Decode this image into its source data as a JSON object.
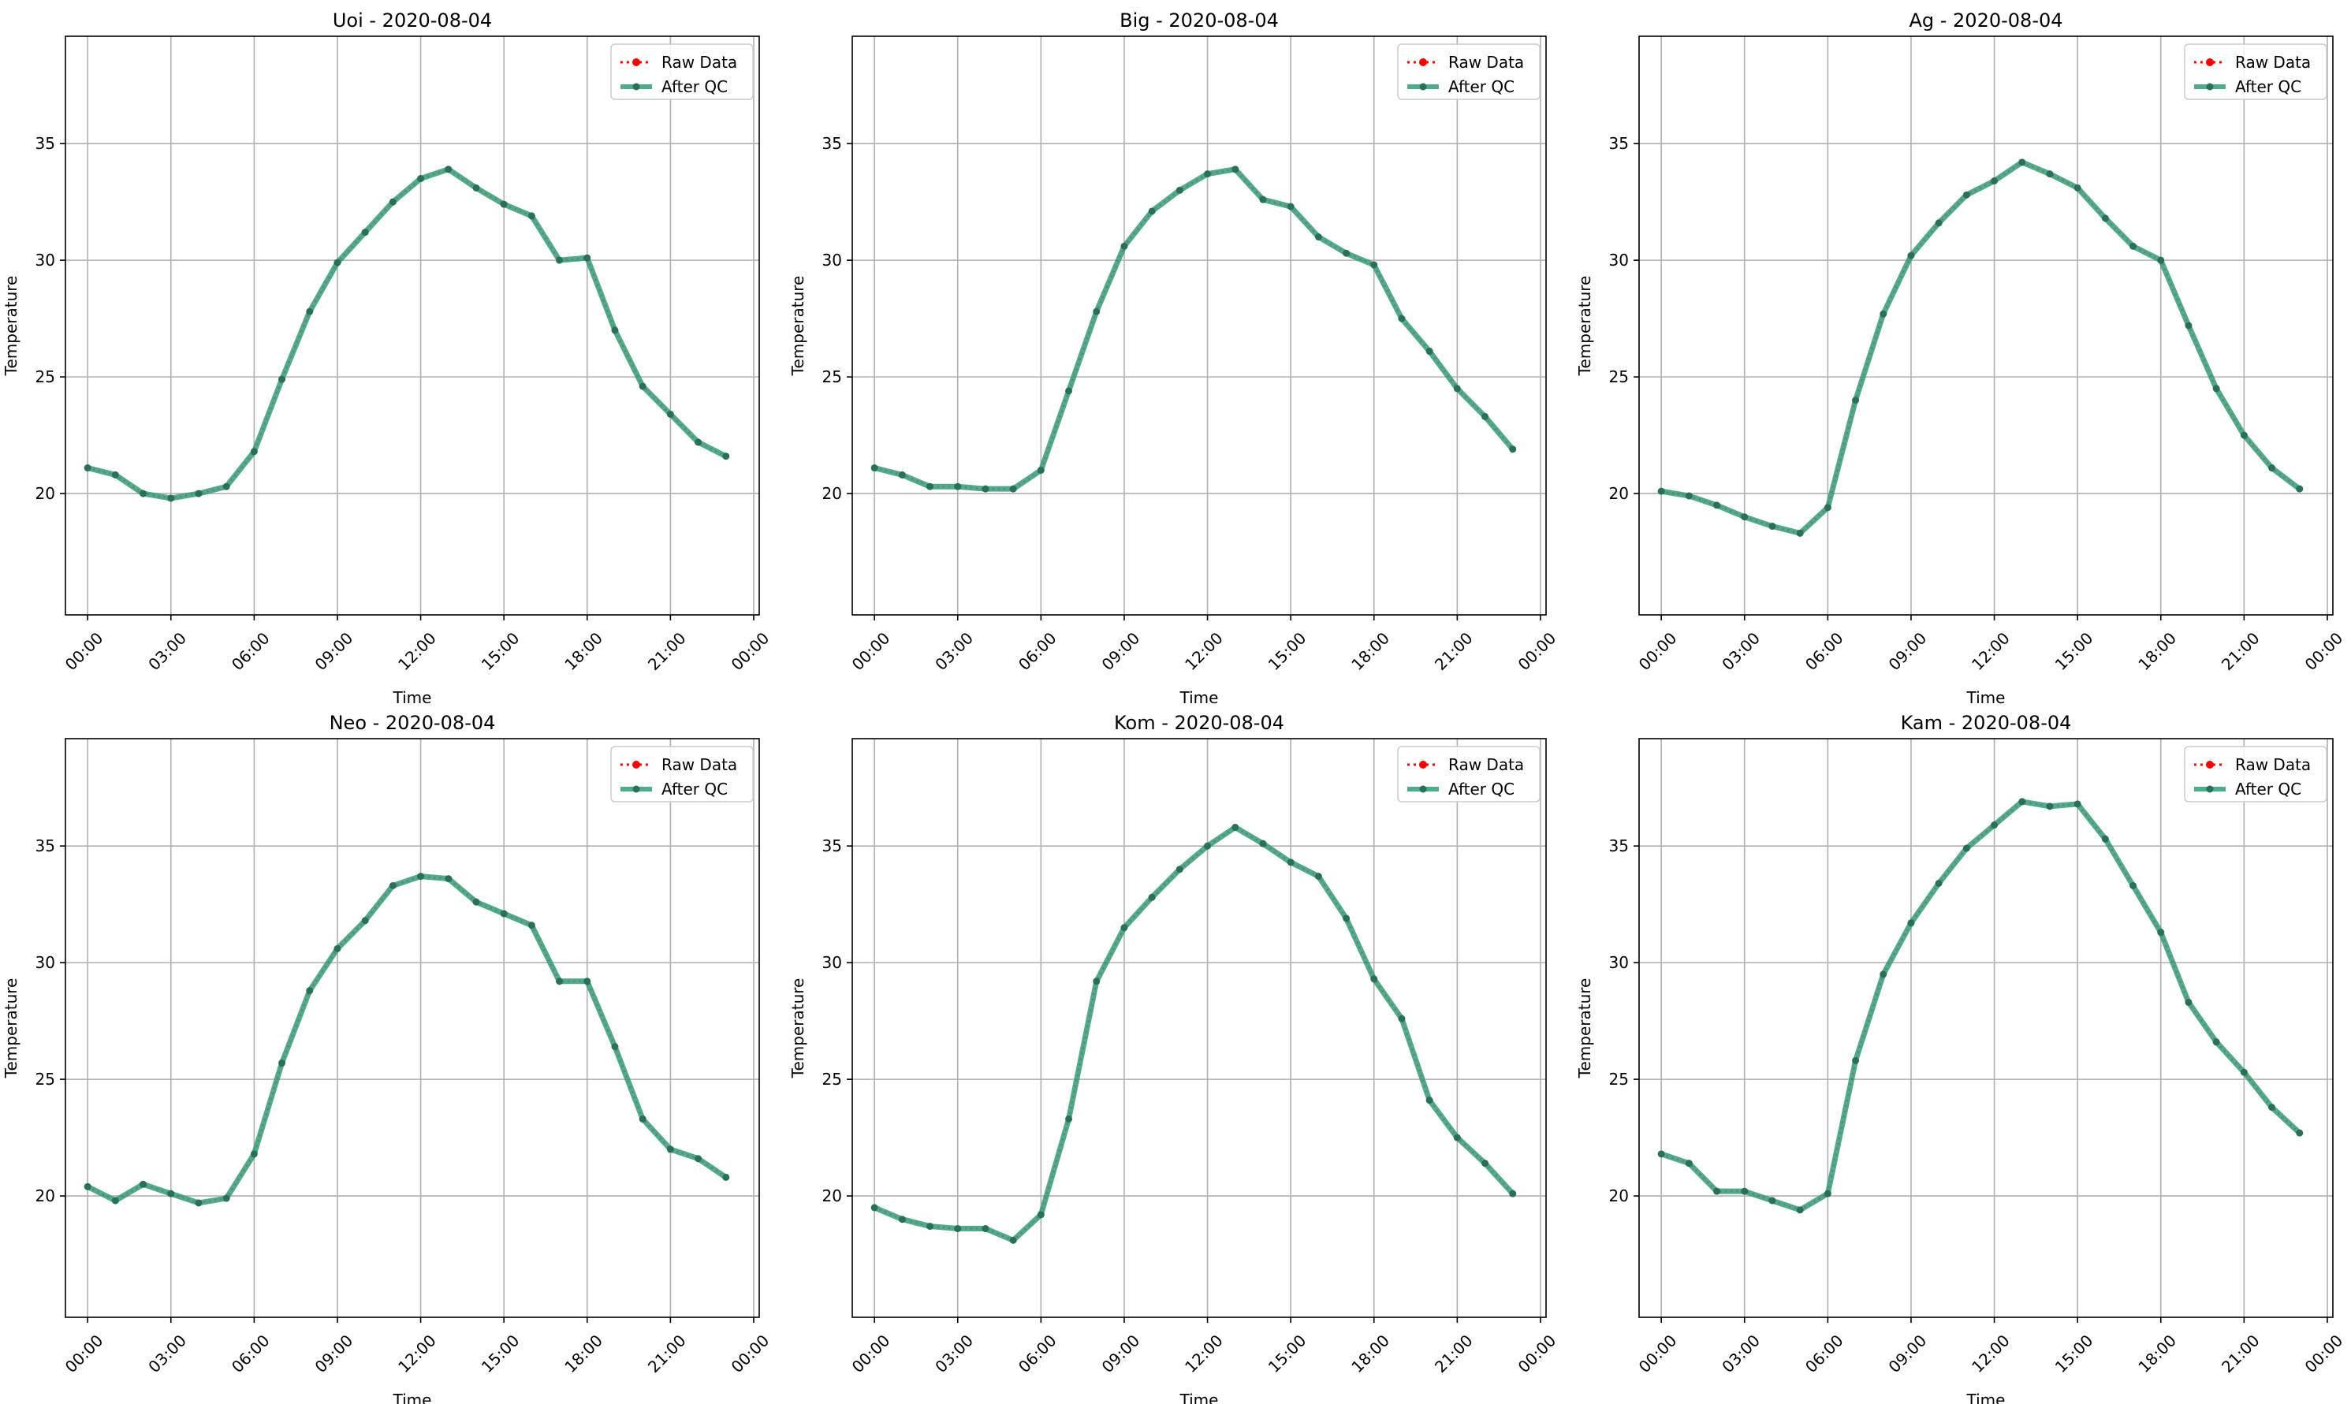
{
  "legend_labels": {
    "raw": "Raw Data",
    "qc": "After QC"
  },
  "colors": {
    "raw": "#ff0000",
    "qc": "#2e9e78",
    "grid": "#b0b0b0",
    "axis": "#000000",
    "marker": "#2a7058"
  },
  "chart_data": [
    {
      "type": "line",
      "title": "Uoi - 2020-08-04",
      "xlabel": "Time",
      "ylabel": "Temperature",
      "ylim": [
        14.8,
        39.6
      ],
      "yticks": [
        20,
        25,
        30,
        35
      ],
      "xlim": [
        -0.8,
        24.2
      ],
      "xticks": [
        0,
        3,
        6,
        9,
        12,
        15,
        18,
        21,
        24
      ],
      "xtick_labels": [
        "00:00",
        "03:00",
        "06:00",
        "09:00",
        "12:00",
        "15:00",
        "18:00",
        "21:00",
        "00:00"
      ],
      "grid": true,
      "legend": "top-right",
      "series": [
        {
          "name": "Raw Data",
          "x": [
            0,
            1,
            2,
            3,
            4,
            5,
            6,
            7,
            8,
            9,
            10,
            11,
            12,
            13,
            14,
            15,
            16,
            17,
            18,
            19,
            20,
            21,
            22,
            23
          ],
          "values": [
            21.1,
            20.8,
            20.0,
            19.8,
            20.0,
            20.3,
            21.8,
            24.9,
            27.8,
            29.9,
            31.2,
            32.5,
            33.5,
            33.9,
            33.1,
            32.4,
            31.9,
            30.0,
            30.1,
            27.0,
            24.6,
            23.4,
            22.2,
            21.6
          ]
        },
        {
          "name": "After QC",
          "x": [
            0,
            1,
            2,
            3,
            4,
            5,
            6,
            7,
            8,
            9,
            10,
            11,
            12,
            13,
            14,
            15,
            16,
            17,
            18,
            19,
            20,
            21,
            22,
            23
          ],
          "values": [
            21.1,
            20.8,
            20.0,
            19.8,
            20.0,
            20.3,
            21.8,
            24.9,
            27.8,
            29.9,
            31.2,
            32.5,
            33.5,
            33.9,
            33.1,
            32.4,
            31.9,
            30.0,
            30.1,
            27.0,
            24.6,
            23.4,
            22.2,
            21.6
          ]
        }
      ]
    },
    {
      "type": "line",
      "title": "Big - 2020-08-04",
      "xlabel": "Time",
      "ylabel": "Temperature",
      "ylim": [
        14.8,
        39.6
      ],
      "yticks": [
        20,
        25,
        30,
        35
      ],
      "xlim": [
        -0.8,
        24.2
      ],
      "xticks": [
        0,
        3,
        6,
        9,
        12,
        15,
        18,
        21,
        24
      ],
      "xtick_labels": [
        "00:00",
        "03:00",
        "06:00",
        "09:00",
        "12:00",
        "15:00",
        "18:00",
        "21:00",
        "00:00"
      ],
      "grid": true,
      "legend": "top-right",
      "series": [
        {
          "name": "Raw Data",
          "x": [
            0,
            1,
            2,
            3,
            4,
            5,
            6,
            7,
            8,
            9,
            10,
            11,
            12,
            13,
            14,
            15,
            16,
            17,
            18,
            19,
            20,
            21,
            22,
            23
          ],
          "values": [
            21.1,
            20.8,
            20.3,
            20.3,
            20.2,
            20.2,
            21.0,
            24.4,
            27.8,
            30.6,
            32.1,
            33.0,
            33.7,
            33.9,
            32.6,
            32.3,
            31.0,
            30.3,
            29.8,
            27.5,
            26.1,
            24.5,
            23.3,
            21.9
          ]
        },
        {
          "name": "After QC",
          "x": [
            0,
            1,
            2,
            3,
            4,
            5,
            6,
            7,
            8,
            9,
            10,
            11,
            12,
            13,
            14,
            15,
            16,
            17,
            18,
            19,
            20,
            21,
            22,
            23
          ],
          "values": [
            21.1,
            20.8,
            20.3,
            20.3,
            20.2,
            20.2,
            21.0,
            24.4,
            27.8,
            30.6,
            32.1,
            33.0,
            33.7,
            33.9,
            32.6,
            32.3,
            31.0,
            30.3,
            29.8,
            27.5,
            26.1,
            24.5,
            23.3,
            21.9
          ]
        }
      ]
    },
    {
      "type": "line",
      "title": "Ag - 2020-08-04",
      "xlabel": "Time",
      "ylabel": "Temperature",
      "ylim": [
        14.8,
        39.6
      ],
      "yticks": [
        20,
        25,
        30,
        35
      ],
      "xlim": [
        -0.8,
        24.2
      ],
      "xticks": [
        0,
        3,
        6,
        9,
        12,
        15,
        18,
        21,
        24
      ],
      "xtick_labels": [
        "00:00",
        "03:00",
        "06:00",
        "09:00",
        "12:00",
        "15:00",
        "18:00",
        "21:00",
        "00:00"
      ],
      "grid": true,
      "legend": "top-right",
      "series": [
        {
          "name": "Raw Data",
          "x": [
            0,
            1,
            2,
            3,
            4,
            5,
            6,
            7,
            8,
            9,
            10,
            11,
            12,
            13,
            14,
            15,
            16,
            17,
            18,
            19,
            20,
            21,
            22,
            23
          ],
          "values": [
            20.1,
            19.9,
            19.5,
            19.0,
            18.6,
            18.3,
            19.4,
            24.0,
            27.7,
            30.2,
            31.6,
            32.8,
            33.4,
            34.2,
            33.7,
            33.1,
            31.8,
            30.6,
            30.0,
            27.2,
            24.5,
            22.5,
            21.1,
            20.2
          ]
        },
        {
          "name": "After QC",
          "x": [
            0,
            1,
            2,
            3,
            4,
            5,
            6,
            7,
            8,
            9,
            10,
            11,
            12,
            13,
            14,
            15,
            16,
            17,
            18,
            19,
            20,
            21,
            22,
            23
          ],
          "values": [
            20.1,
            19.9,
            19.5,
            19.0,
            18.6,
            18.3,
            19.4,
            24.0,
            27.7,
            30.2,
            31.6,
            32.8,
            33.4,
            34.2,
            33.7,
            33.1,
            31.8,
            30.6,
            30.0,
            27.2,
            24.5,
            22.5,
            21.1,
            20.2
          ]
        }
      ]
    },
    {
      "type": "line",
      "title": "Neo - 2020-08-04",
      "xlabel": "Time",
      "ylabel": "Temperature",
      "ylim": [
        14.8,
        39.6
      ],
      "yticks": [
        20,
        25,
        30,
        35
      ],
      "xlim": [
        -0.8,
        24.2
      ],
      "xticks": [
        0,
        3,
        6,
        9,
        12,
        15,
        18,
        21,
        24
      ],
      "xtick_labels": [
        "00:00",
        "03:00",
        "06:00",
        "09:00",
        "12:00",
        "15:00",
        "18:00",
        "21:00",
        "00:00"
      ],
      "grid": true,
      "legend": "top-right",
      "series": [
        {
          "name": "Raw Data",
          "x": [
            0,
            1,
            2,
            3,
            4,
            5,
            6,
            7,
            8,
            9,
            10,
            11,
            12,
            13,
            14,
            15,
            16,
            17,
            18,
            19,
            20,
            21,
            22,
            23
          ],
          "values": [
            20.4,
            19.8,
            20.5,
            20.1,
            19.7,
            19.9,
            21.8,
            25.7,
            28.8,
            30.6,
            31.8,
            33.3,
            33.7,
            33.6,
            32.6,
            32.1,
            31.6,
            29.2,
            29.2,
            26.4,
            23.3,
            22.0,
            21.6,
            20.8
          ]
        },
        {
          "name": "After QC",
          "x": [
            0,
            1,
            2,
            3,
            4,
            5,
            6,
            7,
            8,
            9,
            10,
            11,
            12,
            13,
            14,
            15,
            16,
            17,
            18,
            19,
            20,
            21,
            22,
            23
          ],
          "values": [
            20.4,
            19.8,
            20.5,
            20.1,
            19.7,
            19.9,
            21.8,
            25.7,
            28.8,
            30.6,
            31.8,
            33.3,
            33.7,
            33.6,
            32.6,
            32.1,
            31.6,
            29.2,
            29.2,
            26.4,
            23.3,
            22.0,
            21.6,
            20.8
          ]
        }
      ]
    },
    {
      "type": "line",
      "title": "Kom - 2020-08-04",
      "xlabel": "Time",
      "ylabel": "Temperature",
      "ylim": [
        14.8,
        39.6
      ],
      "yticks": [
        20,
        25,
        30,
        35
      ],
      "xlim": [
        -0.8,
        24.2
      ],
      "xticks": [
        0,
        3,
        6,
        9,
        12,
        15,
        18,
        21,
        24
      ],
      "xtick_labels": [
        "00:00",
        "03:00",
        "06:00",
        "09:00",
        "12:00",
        "15:00",
        "18:00",
        "21:00",
        "00:00"
      ],
      "grid": true,
      "legend": "top-right",
      "series": [
        {
          "name": "Raw Data",
          "x": [
            0,
            1,
            2,
            3,
            4,
            5,
            6,
            7,
            8,
            9,
            10,
            11,
            12,
            13,
            14,
            15,
            16,
            17,
            18,
            19,
            20,
            21,
            22,
            23
          ],
          "values": [
            19.5,
            19.0,
            18.7,
            18.6,
            18.6,
            18.1,
            19.2,
            23.3,
            29.2,
            31.5,
            32.8,
            34.0,
            35.0,
            35.8,
            35.1,
            34.3,
            33.7,
            31.9,
            29.3,
            27.6,
            24.1,
            22.5,
            21.4,
            20.1
          ]
        },
        {
          "name": "After QC",
          "x": [
            0,
            1,
            2,
            3,
            4,
            5,
            6,
            7,
            8,
            9,
            10,
            11,
            12,
            13,
            14,
            15,
            16,
            17,
            18,
            19,
            20,
            21,
            22,
            23
          ],
          "values": [
            19.5,
            19.0,
            18.7,
            18.6,
            18.6,
            18.1,
            19.2,
            23.3,
            29.2,
            31.5,
            32.8,
            34.0,
            35.0,
            35.8,
            35.1,
            34.3,
            33.7,
            31.9,
            29.3,
            27.6,
            24.1,
            22.5,
            21.4,
            20.1
          ]
        }
      ]
    },
    {
      "type": "line",
      "title": "Kam - 2020-08-04",
      "xlabel": "Time",
      "ylabel": "Temperature",
      "ylim": [
        14.8,
        39.6
      ],
      "yticks": [
        20,
        25,
        30,
        35
      ],
      "xlim": [
        -0.8,
        24.2
      ],
      "xticks": [
        0,
        3,
        6,
        9,
        12,
        15,
        18,
        21,
        24
      ],
      "xtick_labels": [
        "00:00",
        "03:00",
        "06:00",
        "09:00",
        "12:00",
        "15:00",
        "18:00",
        "21:00",
        "00:00"
      ],
      "grid": true,
      "legend": "top-right",
      "series": [
        {
          "name": "Raw Data",
          "x": [
            0,
            1,
            2,
            3,
            4,
            5,
            6,
            7,
            8,
            9,
            10,
            11,
            12,
            13,
            14,
            15,
            16,
            17,
            18,
            19,
            20,
            21,
            22,
            23
          ],
          "values": [
            21.8,
            21.4,
            20.2,
            20.2,
            19.8,
            19.4,
            20.1,
            25.8,
            29.5,
            31.7,
            33.4,
            34.9,
            35.9,
            36.9,
            36.7,
            36.8,
            35.3,
            33.3,
            31.3,
            28.3,
            26.6,
            25.3,
            23.8,
            22.7
          ]
        },
        {
          "name": "After QC",
          "x": [
            0,
            1,
            2,
            3,
            4,
            5,
            6,
            7,
            8,
            9,
            10,
            11,
            12,
            13,
            14,
            15,
            16,
            17,
            18,
            19,
            20,
            21,
            22,
            23
          ],
          "values": [
            21.8,
            21.4,
            20.2,
            20.2,
            19.8,
            19.4,
            20.1,
            25.8,
            29.5,
            31.7,
            33.4,
            34.9,
            35.9,
            36.9,
            36.7,
            36.8,
            35.3,
            33.3,
            31.3,
            28.3,
            26.6,
            25.3,
            23.8,
            22.7
          ]
        }
      ]
    }
  ]
}
